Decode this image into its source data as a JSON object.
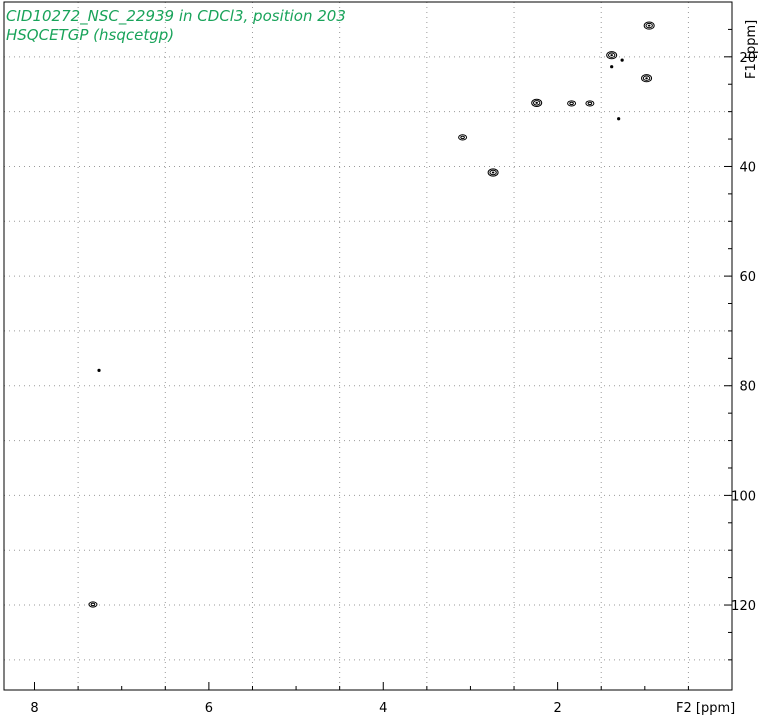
{
  "header": {
    "title": "CID10272_NSC_22939 in CDCl3, position 203",
    "subtitle": "HSQCETGP (hsqcetgp)"
  },
  "chart_data": {
    "type": "scatter",
    "title": "CID10272_NSC_22939 in CDCl3, position 203",
    "subtitle": "HSQCETGP (hsqcetgp)",
    "xlabel": "F2 [ppm]",
    "ylabel": "F1 [ppm]",
    "xlim": [
      8.35,
      0.0
    ],
    "ylim": [
      10.0,
      135.5
    ],
    "x_reversed": true,
    "y_reversed": true,
    "grid": true,
    "x_ticks": [
      8,
      6,
      4,
      2
    ],
    "y_ticks": [
      20,
      40,
      60,
      80,
      100,
      120
    ],
    "peaks": [
      {
        "x": 0.95,
        "y": 14.3,
        "size": 3
      },
      {
        "x": 1.38,
        "y": 19.7,
        "size": 3
      },
      {
        "x": 1.38,
        "y": 21.8,
        "size": 1
      },
      {
        "x": 1.26,
        "y": 20.6,
        "size": 1
      },
      {
        "x": 0.98,
        "y": 23.9,
        "size": 3
      },
      {
        "x": 2.24,
        "y": 28.4,
        "size": 3
      },
      {
        "x": 1.84,
        "y": 28.5,
        "size": 2
      },
      {
        "x": 1.63,
        "y": 28.5,
        "size": 2
      },
      {
        "x": 1.3,
        "y": 31.3,
        "size": 1
      },
      {
        "x": 3.09,
        "y": 34.7,
        "size": 2
      },
      {
        "x": 2.74,
        "y": 41.1,
        "size": 3
      },
      {
        "x": 7.26,
        "y": 77.2,
        "size": 1
      },
      {
        "x": 7.33,
        "y": 119.9,
        "size": 2
      }
    ]
  },
  "colors": {
    "caption": "#19a35a",
    "peaks": "#000000",
    "grid": "#9a9a9a",
    "axes": "#000000"
  }
}
